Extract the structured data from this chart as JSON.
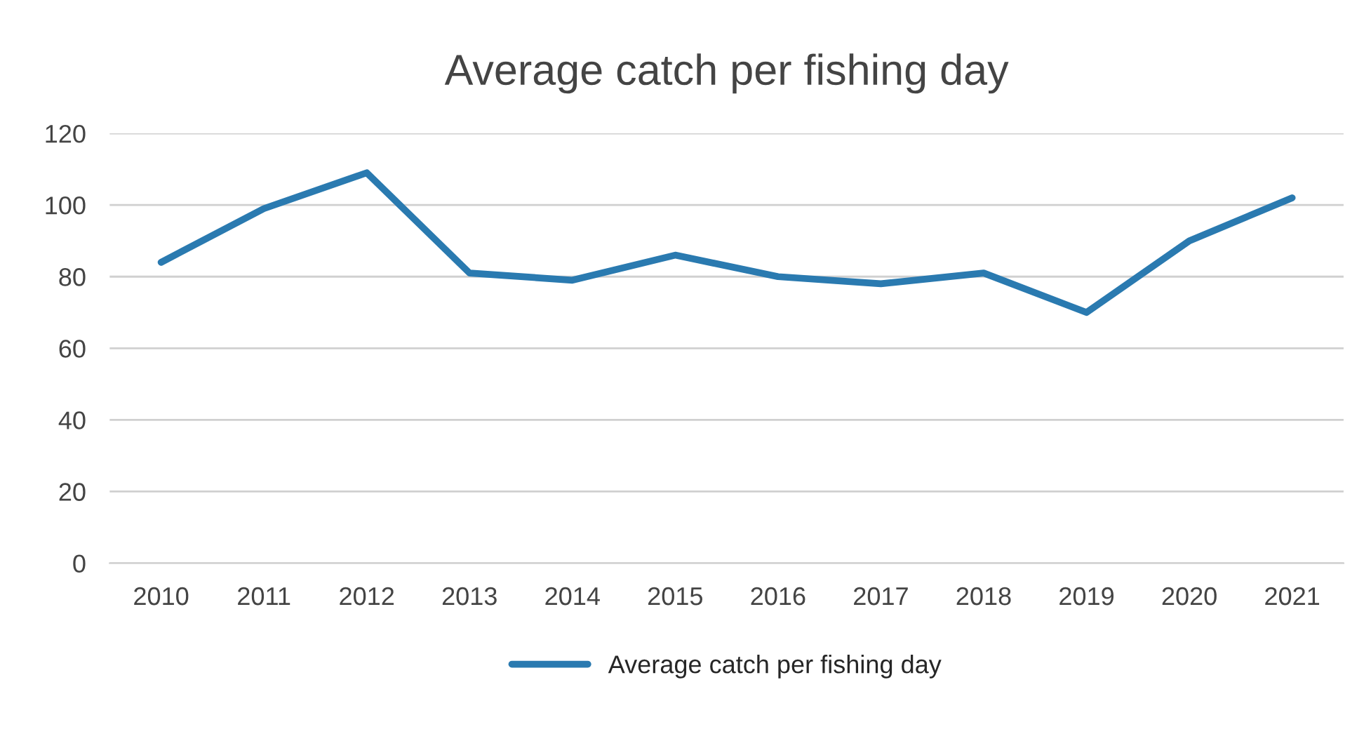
{
  "chart_data": {
    "type": "line",
    "title": "Average catch per fishing day",
    "categories": [
      "2010",
      "2011",
      "2012",
      "2013",
      "2014",
      "2015",
      "2016",
      "2017",
      "2018",
      "2019",
      "2020",
      "2021"
    ],
    "series": [
      {
        "name": "Average catch per fishing day",
        "color": "#2a7ab0",
        "values": [
          84,
          99,
          109,
          81,
          79,
          86,
          80,
          78,
          81,
          70,
          90,
          102
        ]
      }
    ],
    "ylim": [
      0,
      120
    ],
    "yticks": [
      0,
      20,
      40,
      60,
      80,
      100,
      120
    ],
    "grid": "y",
    "legend": "bottom",
    "marker": "none",
    "line_style": "solid"
  }
}
